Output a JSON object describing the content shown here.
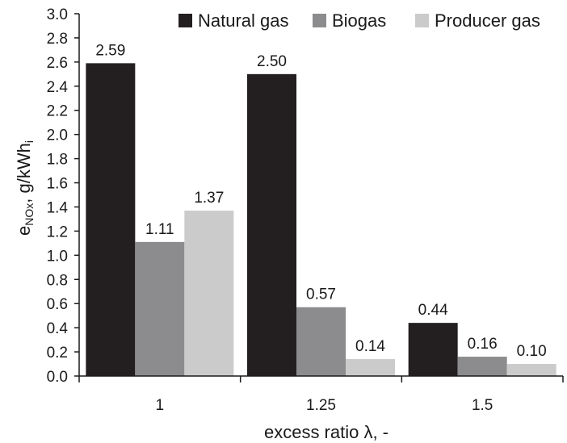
{
  "chart_data": {
    "type": "bar",
    "xlabel": "excess ratio λ, -",
    "ylabel": {
      "base": "e",
      "sub_nox": "NOx",
      "unit": ", g/kWh",
      "sub_unit": "i"
    },
    "categories": [
      "1",
      "1.25",
      "1.5"
    ],
    "series": [
      {
        "name": "Natural gas",
        "color": "#231f20",
        "values": [
          2.59,
          2.5,
          0.44
        ],
        "labels": [
          "2.59",
          "2.50",
          "0.44"
        ]
      },
      {
        "name": "Biogas",
        "color": "#8c8c8e",
        "values": [
          1.11,
          0.57,
          0.16
        ],
        "labels": [
          "1.11",
          "0.57",
          "0.16"
        ]
      },
      {
        "name": "Producer gas",
        "color": "#cbcbcc",
        "values": [
          1.37,
          0.14,
          0.1
        ],
        "labels": [
          "1.37",
          "0.14",
          "0.10"
        ]
      }
    ],
    "ylim": [
      0,
      3.0
    ],
    "yticks": [
      "0.0",
      "0.2",
      "0.4",
      "0.6",
      "0.8",
      "1.0",
      "1.2",
      "1.4",
      "1.6",
      "1.8",
      "2.0",
      "2.2",
      "2.4",
      "2.6",
      "2.8",
      "3.0"
    ],
    "legend_position": "top-right",
    "grid": false
  }
}
